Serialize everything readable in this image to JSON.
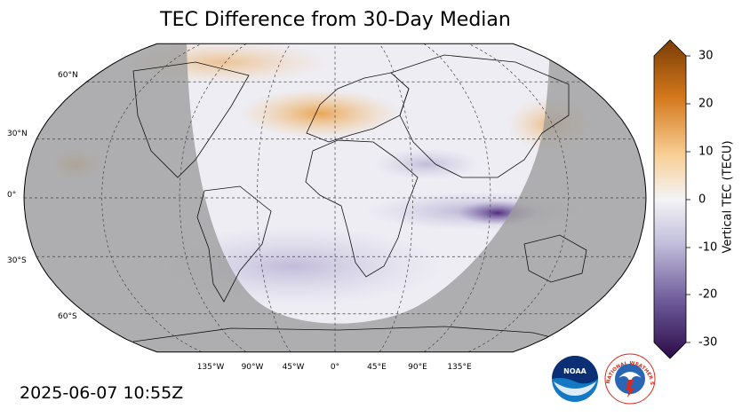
{
  "title": "TEC Difference from 30-Day Median",
  "timestamp": "2025-06-07 10:55Z",
  "colorbar": {
    "label": "Vertical TEC (TECU)",
    "ticks": [
      "30",
      "20",
      "10",
      "0",
      "-10",
      "-20",
      "-30"
    ],
    "range": [
      -30,
      30
    ],
    "colors": {
      "positive": "#8b4a0a",
      "neutral": "#f2f2f4",
      "negative": "#2e0a4a"
    }
  },
  "map": {
    "projection": "Robinson",
    "lat_labels": [
      "60°N",
      "30°N",
      "0°",
      "30°S",
      "60°S"
    ],
    "lon_labels": [
      "135°W",
      "90°W",
      "45°W",
      "0°",
      "45°E",
      "90°E",
      "135°E"
    ],
    "night_shading": "#a8a8a8",
    "ocean_tint": "#eceaf2"
  },
  "logos": {
    "noaa_text": "NOAA",
    "nws_text": "NATIONAL WEATHER SERVICE"
  }
}
